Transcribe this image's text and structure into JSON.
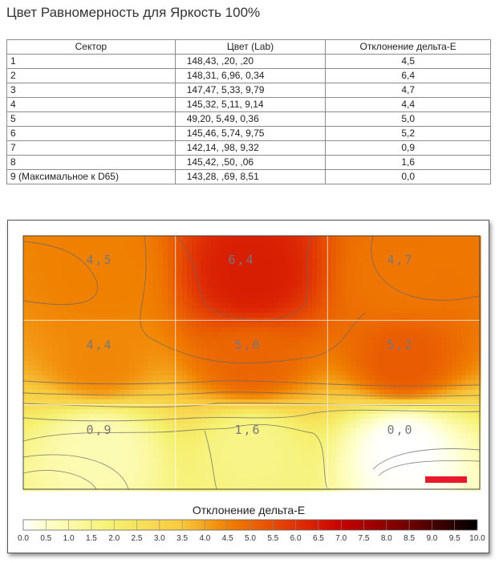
{
  "page": {
    "title": "Цвет Равномерность для Яркость 100%"
  },
  "table": {
    "headers": [
      "Сектор",
      "Цвет (Lab)",
      "Отклонение дельта-E"
    ],
    "rows": [
      [
        "1",
        "148,43,    ,20,    ,20",
        "4,5"
      ],
      [
        "2",
        "148,31,   6,96,   0,34",
        "6,4"
      ],
      [
        "3",
        "147,47,   5,33,   9,79",
        "4,7"
      ],
      [
        "4",
        "145,32,   5,11,   9,14",
        "4,4"
      ],
      [
        "5",
        " 49,20,   5,49,   0,36",
        "5,0"
      ],
      [
        "6",
        "145,46,   5,74,   9,75",
        "5,2"
      ],
      [
        "7",
        "142,14,    ,98,   9,32",
        "0,9"
      ],
      [
        "8",
        "145,42,    ,50,    ,06",
        "1,6"
      ],
      [
        "9 (Максимальное к D65)",
        "143,28,    ,69,   8,51",
        "0,0"
      ]
    ]
  },
  "chart_data": {
    "type": "heatmap",
    "grid": {
      "rows": 3,
      "cols": 3
    },
    "cells": [
      [
        "4,5",
        "6,4",
        "4,7"
      ],
      [
        "4,4",
        "5,0",
        "5,2"
      ],
      [
        "0,9",
        "1,6",
        "0,0"
      ]
    ],
    "values": [
      [
        4.5,
        6.4,
        4.7
      ],
      [
        4.4,
        5.0,
        5.2
      ],
      [
        0.9,
        1.6,
        0.0
      ]
    ],
    "colorbar": {
      "title": "Отклонение дельта-E",
      "range": [
        0,
        10
      ],
      "ticks": [
        "0.0",
        "0.5",
        "1.0",
        "1.5",
        "2.0",
        "2.5",
        "3.0",
        "3.5",
        "4.0",
        "4.5",
        "5.0",
        "5.5",
        "6.0",
        "6.5",
        "7.0",
        "7.5",
        "8.0",
        "8.5",
        "9.0",
        "9.5",
        "10.0"
      ]
    },
    "marker_color": "#e8192c",
    "contours": true
  }
}
